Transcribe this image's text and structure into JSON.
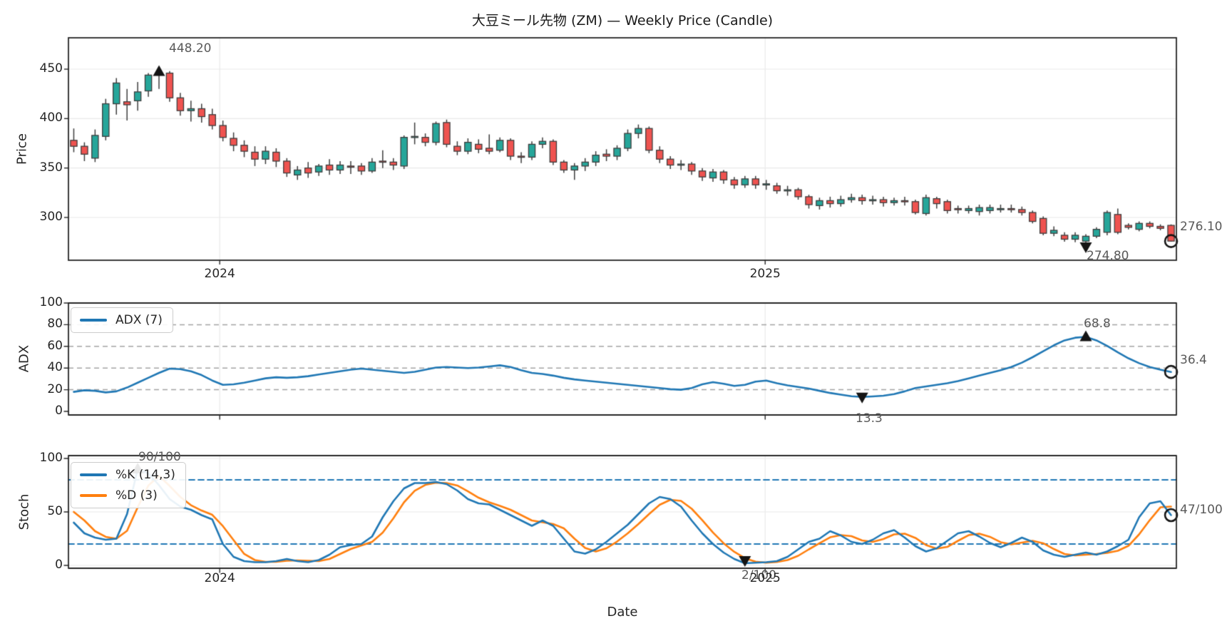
{
  "title": "大豆ミール先物 (ZM) — Weekly Price (Candle)",
  "xlabel": "Date",
  "xticks": [
    "2024",
    "2025"
  ],
  "panels": {
    "price": {
      "ylabel": "Price",
      "yticks": [
        450,
        400,
        350,
        300
      ]
    },
    "adx": {
      "ylabel": "ADX",
      "yticks": [
        100,
        80,
        60,
        40,
        20,
        0
      ],
      "legend": "ADX (7)"
    },
    "stoch": {
      "ylabel": "Stoch",
      "yticks": [
        100,
        50,
        0
      ],
      "legend_k": "%K (14,3)",
      "legend_d": "%D (3)"
    }
  },
  "colors": {
    "background": "#ffffff",
    "candle_up": "#26a69a",
    "candle_down": "#ef5350",
    "candle_edge": "#3d3d3d",
    "wick": "#3d3d3d",
    "adx_line": "#1f77b4",
    "stoch_k_line": "#1f77b4",
    "stoch_d_line": "#ff7f0e",
    "stoch_band_line": "#1f77b4",
    "dashed_grid": "#a3a3a3",
    "light_grid": "#e9e9e9",
    "spine": "#262626",
    "marker": "#141414",
    "annotation_text": "#595959"
  },
  "chart_data": [
    {
      "type": "candlestick",
      "panel": "price",
      "title": "大豆ミール先物 (ZM) — Weekly Price (Candle)",
      "ylabel": "Price",
      "xlabel": "Date",
      "x_unit": "week",
      "n_weeks": 104,
      "ylim": [
        257,
        482
      ],
      "year_ticks": [
        {
          "label": "2024",
          "week": 13.7
        },
        {
          "label": "2025",
          "week": 64.9
        }
      ],
      "ohlc_columns": [
        "open",
        "high",
        "low",
        "close"
      ],
      "ohlc": [
        [
          378,
          390,
          366,
          372
        ],
        [
          372,
          376,
          357,
          364
        ],
        [
          360,
          389,
          356,
          383
        ],
        [
          382,
          420,
          378,
          415
        ],
        [
          415,
          441,
          404,
          436
        ],
        [
          417,
          430,
          398,
          414
        ],
        [
          418,
          437,
          408,
          427
        ],
        [
          428,
          446,
          422,
          444
        ],
        [
          444,
          448.2,
          430,
          446
        ],
        [
          446,
          448,
          417,
          421
        ],
        [
          421,
          426,
          403,
          408
        ],
        [
          408,
          418,
          397,
          410
        ],
        [
          410,
          415,
          396,
          402
        ],
        [
          404,
          410,
          389,
          393
        ],
        [
          393,
          398,
          377,
          381
        ],
        [
          380,
          386,
          367,
          373
        ],
        [
          373,
          378,
          361,
          367
        ],
        [
          366,
          372,
          352,
          359
        ],
        [
          359,
          372,
          354,
          367
        ],
        [
          366,
          370,
          351,
          357
        ],
        [
          357,
          360,
          341,
          345
        ],
        [
          343,
          352,
          338,
          348
        ],
        [
          350,
          356,
          340,
          345
        ],
        [
          346,
          354,
          342,
          352
        ],
        [
          353,
          359,
          343,
          348
        ],
        [
          348,
          357,
          344,
          353
        ],
        [
          352,
          357,
          344,
          351
        ],
        [
          352,
          355,
          343,
          347
        ],
        [
          347,
          360,
          345,
          356
        ],
        [
          357,
          368,
          350,
          356
        ],
        [
          356,
          360,
          348,
          353
        ],
        [
          352,
          383,
          349,
          381
        ],
        [
          381,
          396,
          374,
          382
        ],
        [
          381,
          385,
          372,
          376
        ],
        [
          376,
          397,
          373,
          395
        ],
        [
          396,
          399,
          371,
          374
        ],
        [
          372,
          377,
          363,
          367
        ],
        [
          367,
          380,
          364,
          376
        ],
        [
          374,
          379,
          365,
          369
        ],
        [
          370,
          384,
          364,
          367
        ],
        [
          368,
          381,
          366,
          378
        ],
        [
          378,
          380,
          358,
          362
        ],
        [
          362,
          366,
          355,
          361
        ],
        [
          361,
          377,
          358,
          374
        ],
        [
          374,
          381,
          370,
          377
        ],
        [
          377,
          379,
          353,
          356
        ],
        [
          356,
          358,
          345,
          348
        ],
        [
          348,
          355,
          338,
          352
        ],
        [
          352,
          360,
          347,
          356
        ],
        [
          356,
          367,
          352,
          363
        ],
        [
          364,
          369,
          357,
          362
        ],
        [
          362,
          373,
          358,
          370
        ],
        [
          370,
          389,
          367,
          385
        ],
        [
          385,
          394,
          380,
          390
        ],
        [
          390,
          392,
          365,
          368
        ],
        [
          368,
          372,
          355,
          359
        ],
        [
          359,
          362,
          349,
          353
        ],
        [
          353,
          358,
          348,
          354
        ],
        [
          354,
          356,
          343,
          347
        ],
        [
          347,
          350,
          337,
          341
        ],
        [
          340,
          349,
          336,
          346
        ],
        [
          346,
          348,
          334,
          338
        ],
        [
          338,
          341,
          329,
          333
        ],
        [
          333,
          342,
          330,
          339
        ],
        [
          339,
          342,
          329,
          333
        ],
        [
          333,
          338,
          328,
          334
        ],
        [
          332,
          335,
          324,
          327
        ],
        [
          327,
          332,
          322,
          328
        ],
        [
          328,
          330,
          318,
          321
        ],
        [
          321,
          323,
          309,
          313
        ],
        [
          312,
          320,
          308,
          317
        ],
        [
          317,
          321,
          310,
          314
        ],
        [
          314,
          322,
          311,
          318
        ],
        [
          318,
          324,
          315,
          320
        ],
        [
          320,
          323,
          313,
          317
        ],
        [
          317,
          322,
          313,
          318
        ],
        [
          318,
          321,
          311,
          315
        ],
        [
          315,
          320,
          312,
          317
        ],
        [
          317,
          321,
          312,
          316
        ],
        [
          316,
          318,
          303,
          305
        ],
        [
          304,
          323,
          302,
          320
        ],
        [
          319,
          321,
          309,
          314
        ],
        [
          316,
          318,
          304,
          307
        ],
        [
          309,
          312,
          304,
          308
        ],
        [
          307,
          312,
          304,
          309
        ],
        [
          306,
          313,
          302,
          310
        ],
        [
          307,
          313,
          304,
          310
        ],
        [
          309,
          313,
          305,
          309
        ],
        [
          309,
          313,
          305,
          308
        ],
        [
          308,
          311,
          302,
          305
        ],
        [
          305,
          307,
          294,
          296
        ],
        [
          299,
          301,
          282,
          284
        ],
        [
          284,
          291,
          281,
          287
        ],
        [
          282,
          285,
          275.5,
          278
        ],
        [
          278,
          285,
          275,
          282
        ],
        [
          276,
          283,
          274.8,
          281
        ],
        [
          281,
          290,
          279,
          288
        ],
        [
          285,
          307,
          282,
          305
        ],
        [
          303,
          309,
          283,
          285
        ],
        [
          292,
          294,
          288,
          290
        ],
        [
          288,
          296,
          286,
          294
        ],
        [
          294,
          296,
          289,
          291
        ],
        [
          291,
          293,
          287,
          289
        ],
        [
          292,
          293,
          275.5,
          276.1
        ]
      ],
      "markers": [
        {
          "week": 8,
          "price": 448.2,
          "type": "triangle-up",
          "label": "448.20"
        },
        {
          "week": 95,
          "price": 274.8,
          "type": "triangle-down",
          "label": "274.80"
        },
        {
          "week": 103,
          "price": 276.1,
          "type": "circle",
          "label": "276.10"
        }
      ]
    },
    {
      "type": "line",
      "panel": "adx",
      "ylabel": "ADX",
      "ylim": [
        0,
        100
      ],
      "grid_dashed_levels": [
        20,
        40,
        60,
        80
      ],
      "series": [
        {
          "name": "ADX (7)",
          "values": [
            18,
            19.5,
            19,
            17.5,
            18.5,
            22,
            26.5,
            31,
            35.5,
            39.5,
            39,
            37,
            33.5,
            28.5,
            24.5,
            25,
            26.5,
            28.5,
            30.5,
            31.5,
            31,
            31.5,
            32.5,
            34,
            35.5,
            37,
            38.5,
            39.5,
            38.5,
            37.5,
            36.5,
            35.5,
            36.5,
            38.5,
            40.5,
            41,
            40.5,
            40,
            40.5,
            41.5,
            42.5,
            41,
            38,
            35.5,
            34.5,
            33,
            31,
            29.5,
            28.5,
            27.5,
            26.5,
            25.5,
            24.5,
            23.5,
            22.5,
            21.5,
            20.5,
            20,
            21.5,
            25,
            27,
            25.5,
            23.5,
            24.5,
            27.5,
            28.5,
            26,
            24,
            22.5,
            21,
            19,
            17,
            15.5,
            14,
            13.3,
            13.8,
            14.5,
            16,
            18.5,
            21.5,
            23,
            24.5,
            26,
            28,
            30.5,
            33,
            35.5,
            38,
            41,
            45,
            50,
            55.5,
            61,
            65.5,
            68,
            68.8,
            65.5,
            60.5,
            54.5,
            49,
            44.5,
            41,
            38.5,
            36.4
          ]
        }
      ],
      "markers": [
        {
          "week": 95,
          "value": 68.8,
          "type": "triangle-up",
          "label": "68.8"
        },
        {
          "week": 74,
          "value": 13.3,
          "type": "triangle-down",
          "label": "13.3"
        },
        {
          "week": 103,
          "value": 36.4,
          "type": "circle",
          "label": "36.4"
        }
      ]
    },
    {
      "type": "line",
      "panel": "stoch",
      "ylabel": "Stoch",
      "ylim": [
        0,
        100
      ],
      "hlines_dashed": [
        80,
        20
      ],
      "series": [
        {
          "name": "%K (14,3)",
          "values": [
            40,
            30,
            26,
            24,
            25,
            48,
            90,
            86,
            75,
            62,
            55,
            52,
            47,
            43,
            20,
            8,
            4,
            3,
            3,
            4,
            6,
            4,
            3,
            5,
            10,
            17,
            19,
            20,
            27,
            45,
            60,
            72,
            77,
            77,
            78,
            76,
            70,
            62,
            58,
            57,
            52,
            47,
            42,
            37,
            42,
            37,
            25,
            13,
            11,
            15,
            22,
            30,
            38,
            48,
            58,
            64,
            62,
            55,
            42,
            30,
            20,
            12,
            6,
            2,
            2.5,
            3,
            4,
            8,
            15,
            22,
            25,
            32,
            28,
            22,
            20,
            24,
            30,
            33,
            26,
            18,
            13,
            16,
            23,
            30,
            32,
            27,
            21,
            17,
            21,
            26,
            22,
            14,
            10,
            8,
            10,
            12,
            10,
            13,
            18,
            24,
            45,
            58,
            60,
            47
          ]
        },
        {
          "name": "%D (3)",
          "values": [
            50,
            42,
            32,
            26.7,
            25,
            32.3,
            54.3,
            74.7,
            83.7,
            74.3,
            64,
            56.3,
            51.3,
            47.3,
            36.7,
            23.7,
            10.7,
            5,
            3.3,
            3.3,
            4.3,
            4.7,
            4.3,
            4,
            6,
            10.7,
            15.3,
            18.7,
            22,
            30.7,
            44,
            59,
            69.7,
            75.3,
            77.3,
            77,
            74.7,
            69.3,
            63.3,
            59,
            55.7,
            52,
            47,
            42,
            40.3,
            38.7,
            34.7,
            25,
            16.3,
            13,
            16,
            22.3,
            30,
            38.7,
            48,
            56.7,
            61.3,
            60.3,
            53,
            42.3,
            30.7,
            20.7,
            12.7,
            6.7,
            3.5,
            2.5,
            3.2,
            5,
            9,
            15,
            20.7,
            26.3,
            28.3,
            27.3,
            23.3,
            22,
            24.7,
            29,
            29.7,
            25.7,
            19,
            15.7,
            17.3,
            23,
            28.3,
            29.7,
            26.7,
            21.7,
            19.7,
            21.3,
            23,
            20.7,
            15.3,
            10.7,
            9.3,
            10,
            10.7,
            11.7,
            13.7,
            18.3,
            29,
            42.3,
            54.3,
            55
          ]
        }
      ],
      "markers": [
        {
          "week": 6,
          "value": 90,
          "type": "triangle-up",
          "label": "90/100"
        },
        {
          "week": 63,
          "value": 2,
          "type": "triangle-down",
          "label": "2/100"
        },
        {
          "week": 103,
          "value": 47,
          "type": "circle",
          "label": "47/100"
        }
      ]
    }
  ]
}
